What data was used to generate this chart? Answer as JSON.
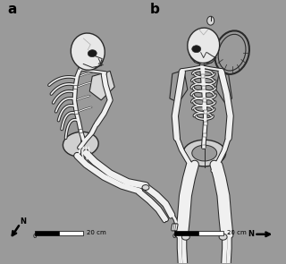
{
  "background_color": "#9a9a9a",
  "label_a": "a",
  "label_b": "b",
  "scale_label": "20 cm",
  "zero_label": "0",
  "fig_width": 3.2,
  "fig_height": 2.95,
  "dpi": 100,
  "bone_color": "#f0f0f0",
  "bone_edge": "#2a2a2a",
  "dark": "#1a1a1a"
}
